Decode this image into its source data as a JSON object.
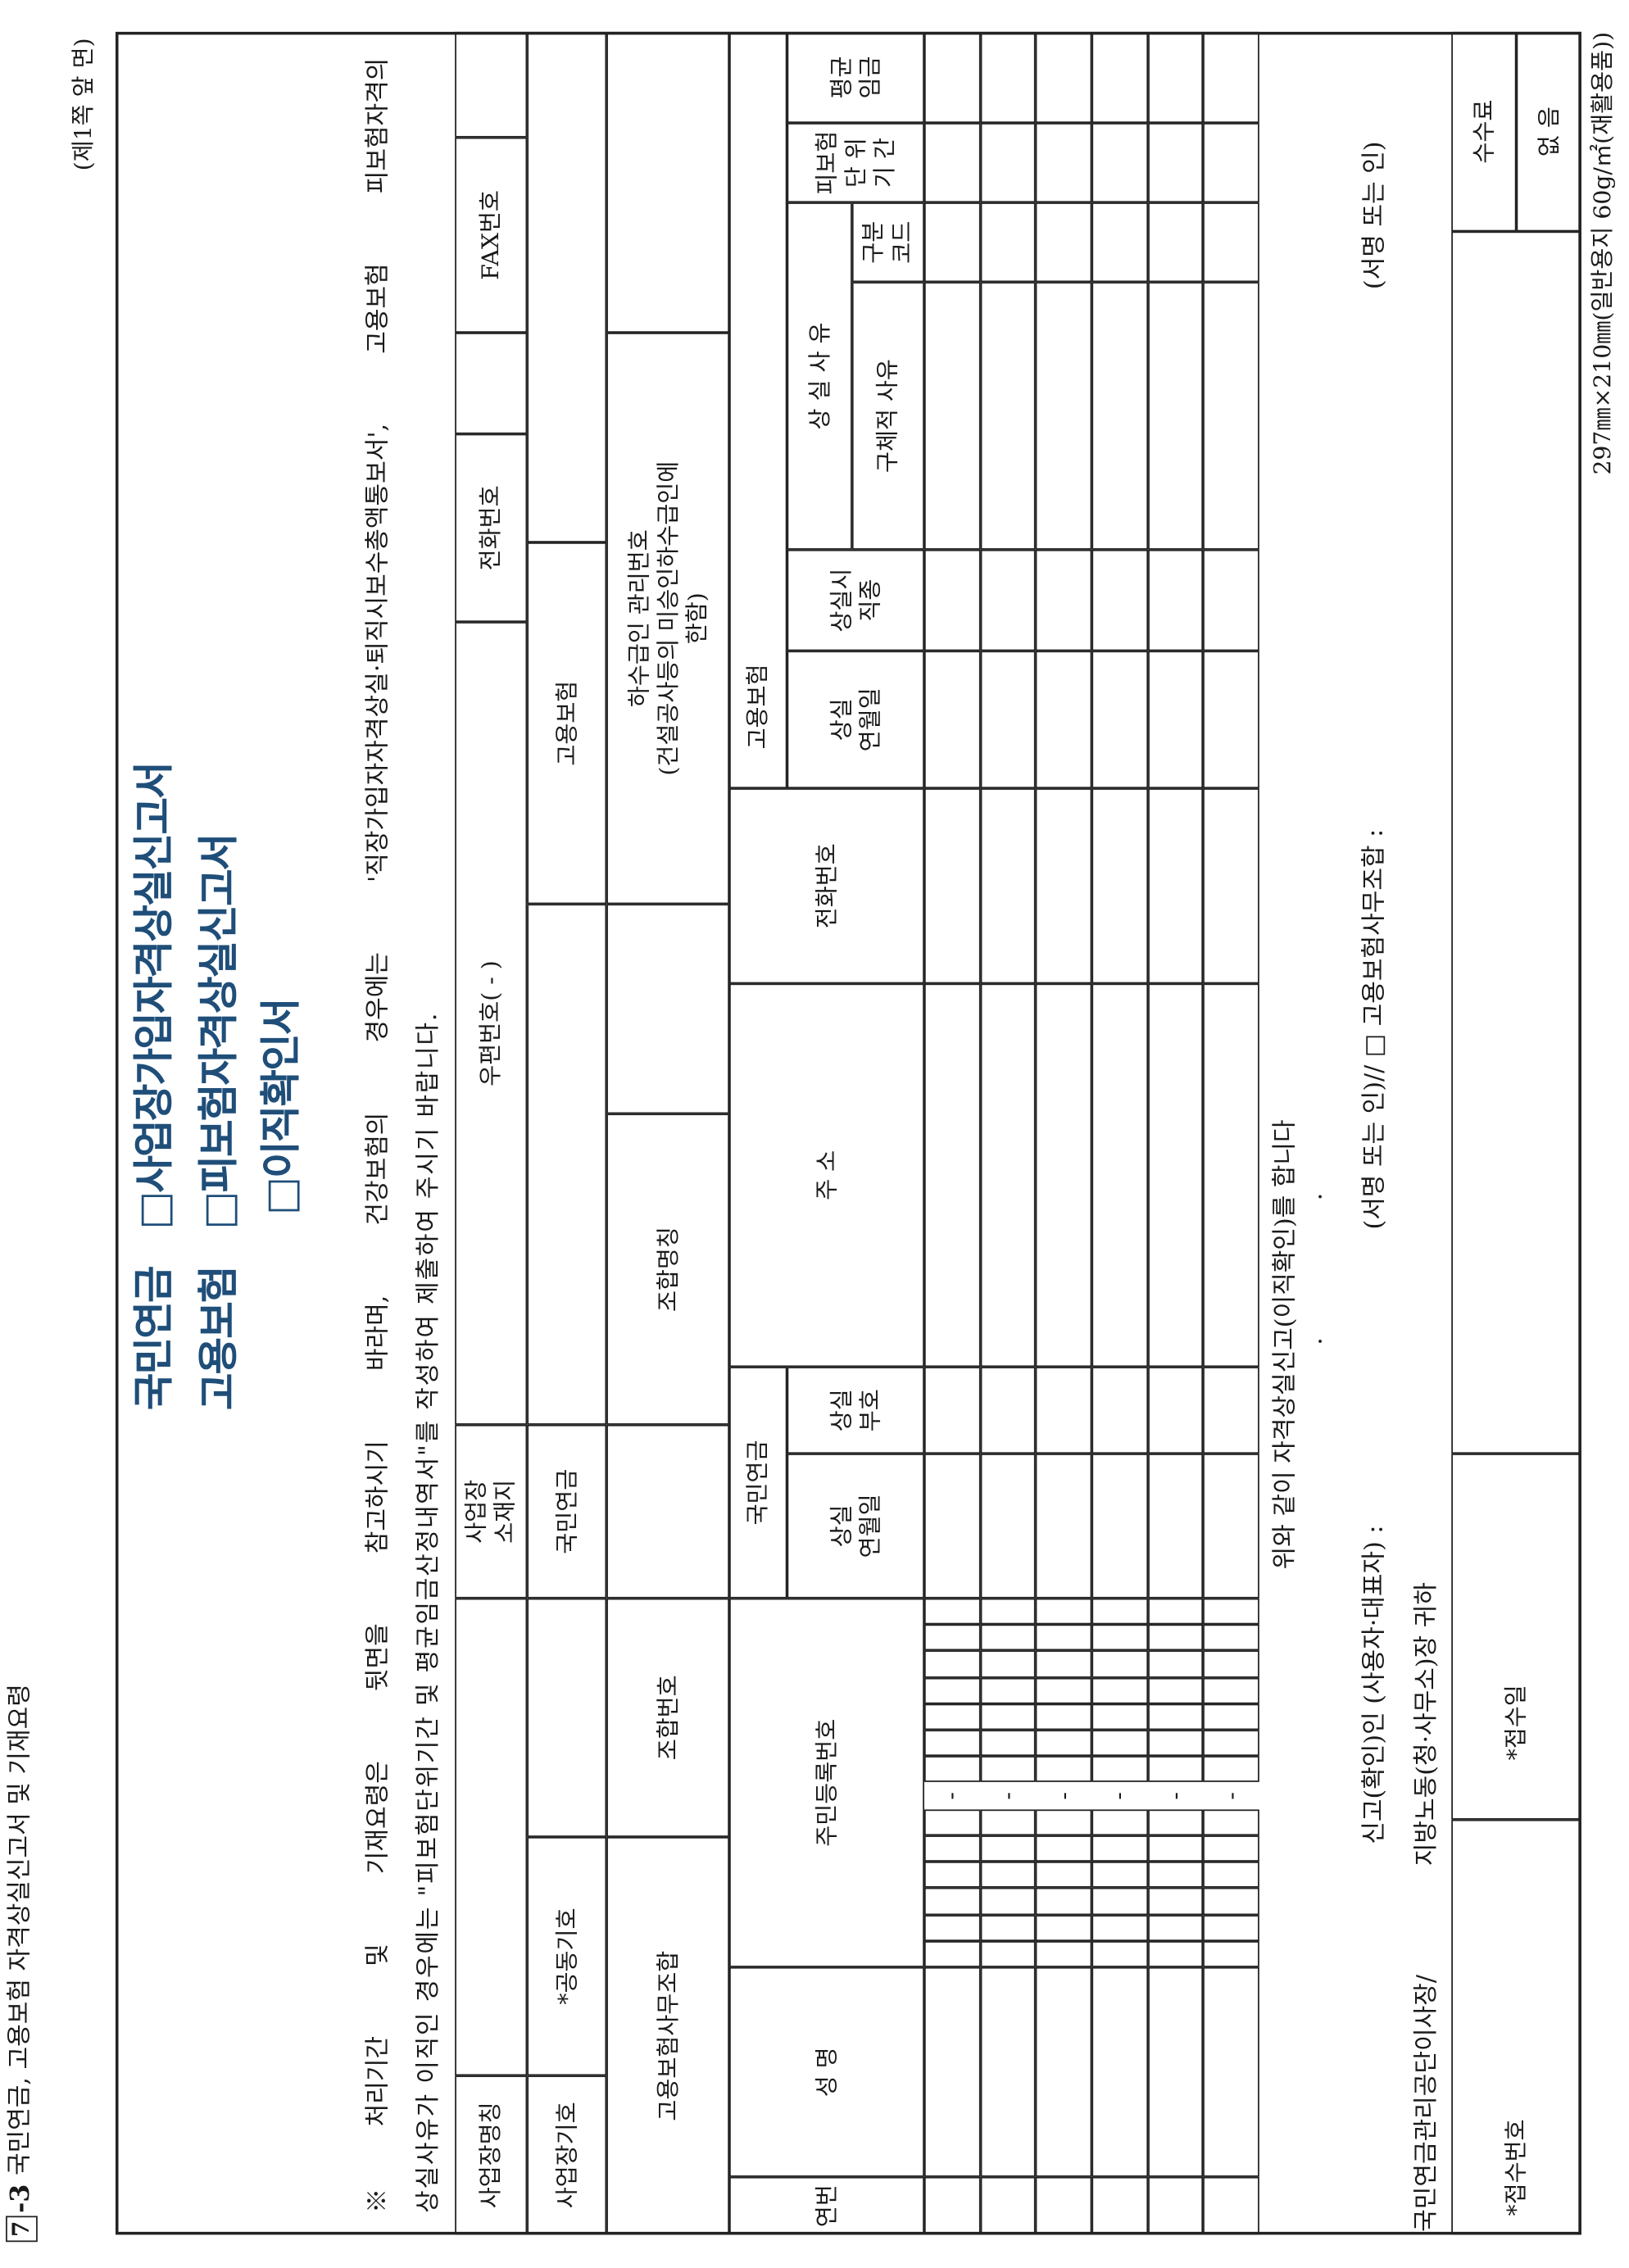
{
  "header": {
    "box_number": "7",
    "number_suffix": "-3",
    "title": "국민연금, 고용보험 자격상실신고서 및 기재요령",
    "page": "(제1쪽 앞 면)"
  },
  "form_title": {
    "group1": "국민연금",
    "item1": "□사업장가입자격상실신고서",
    "group2": "고용보험",
    "item2": "□피보험자격상실신고서",
    "item3": "□이직확인서"
  },
  "notice": [
    "※처리기간 및 기재요령은 뒷면을 참고하시기 바라며, 건강보험의 경우에는 '직장가입자자격상실·퇴직시보수총액통보서', 고용보험 피보험자격의",
    "상실사유가 이직인 경우에는 \"피보험단위기간 및 평균임금산정내역서\"를 작성하여 제출하여 주시기 바랍니다."
  ],
  "employer": {
    "name": "사업장명칭",
    "address": "사업장\n소재지",
    "postal": "우편번호(     -     )",
    "phone": "전화번호",
    "fax": "FAX번호",
    "code": "사업장기호",
    "joint_code": "*공동기호",
    "nps": "국민연금",
    "ei": "고용보험",
    "agency": "고용보험사무조합",
    "agency_no": "조합번호",
    "agency_name": "조합명칭",
    "subcontractor": "하수급인 관리번호\n(건설공사등의 미승인하수급인에\n한함)"
  },
  "table": {
    "seq": "연번",
    "name": "성   명",
    "rrn": "주민등록번호",
    "rrn_dash": "-",
    "nps": "국민연금",
    "nps_date": "상실\n연월일",
    "nps_code": "상실\n부호",
    "address": "주          소",
    "phone": "전화번호",
    "ei": "고용보험",
    "ei_date": "상실\n연월일",
    "ei_job": "상실시\n직종",
    "reason": "상 실 사 유",
    "reason_detail": "구체적 사유",
    "reason_code": "구분\n코드",
    "period": "피보험\n단 위\n기 간",
    "wage": "평균\n임금"
  },
  "declaration": {
    "statement": "위와 같이 자격상실신고(이직확인)를 합니다",
    "date_marks": [
      "·",
      "·"
    ],
    "reporter": "신고(확인)인 (사용자·대표자) :",
    "sign_agency": "(서명 또는 인)// □ 고용보험사무조합 :",
    "sign": "(서명 또는 인)",
    "addressee1": "국민연금관리공단이사장/",
    "addressee2": "지방노동(청·사무소)장 귀하"
  },
  "receipt": {
    "number": "*접수번호",
    "date": "*접수일",
    "fee_label": "수수료",
    "fee": "없  음"
  },
  "footer": "297㎜×210㎜(일반용지 60g/㎡(재활용품))"
}
